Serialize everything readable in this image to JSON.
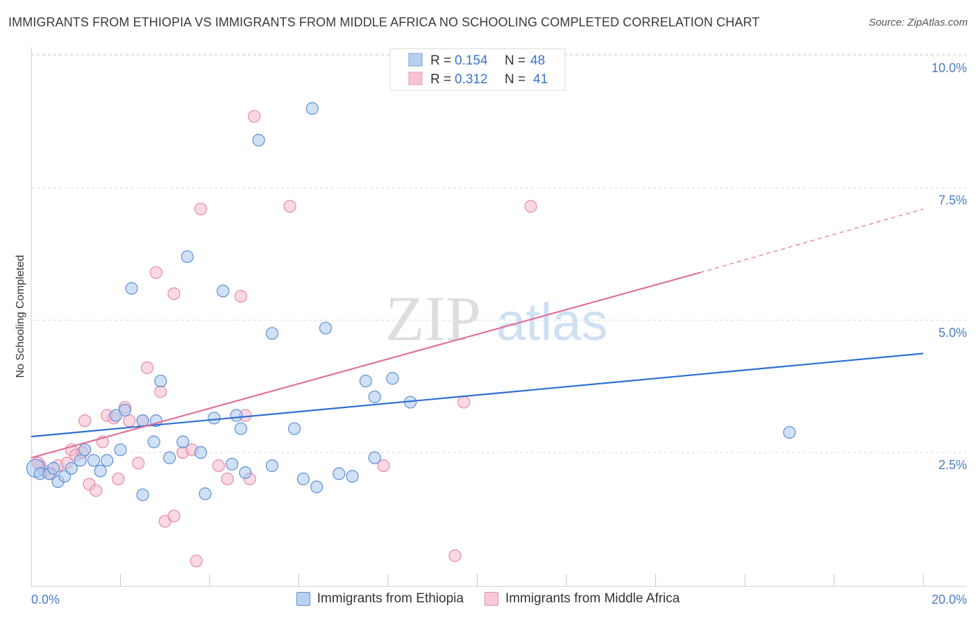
{
  "title": "IMMIGRANTS FROM ETHIOPIA VS IMMIGRANTS FROM MIDDLE AFRICA NO SCHOOLING COMPLETED CORRELATION CHART",
  "source": "Source: ZipAtlas.com",
  "watermark": {
    "zip": "ZIP",
    "atlas": "atlas"
  },
  "colors": {
    "blue_fill": "#a9c8ef",
    "blue_stroke": "#5b8fd6",
    "blue_line": "#2f6fd1",
    "pink_fill": "#f6b9cc",
    "pink_stroke": "#e48aa9",
    "pink_line": "#e0709a",
    "tick_text": "#4a7cc7",
    "grid": "#d9d9d9"
  },
  "legend": {
    "rows": [
      {
        "r_label": "R =",
        "r_value": "0.154",
        "n_label": "N =",
        "n_value": "48"
      },
      {
        "r_label": "R =",
        "r_value": "0.312",
        "n_label": "N =",
        "n_value": "41"
      }
    ]
  },
  "bottom_legend": {
    "series1": "Immigrants from Ethiopia",
    "series2": "Immigrants from Middle Africa"
  },
  "chart_data": {
    "type": "scatter",
    "title": "IMMIGRANTS FROM ETHIOPIA VS IMMIGRANTS FROM MIDDLE AFRICA NO SCHOOLING COMPLETED CORRELATION CHART",
    "xlabel": "",
    "ylabel": "No Schooling Completed",
    "xlim": [
      0,
      20
    ],
    "ylim": [
      0,
      10.5
    ],
    "x_tick_labels": [
      "0.0%",
      "20.0%"
    ],
    "y_ticks": [
      2.5,
      5.0,
      7.5,
      10.0
    ],
    "y_tick_labels": [
      "2.5%",
      "5.0%",
      "7.5%",
      "10.0%"
    ],
    "grid": true,
    "series": [
      {
        "name": "Immigrants from Ethiopia",
        "r": 0.154,
        "n": 48,
        "trend": {
          "x0": 0,
          "y0": 2.8,
          "x1": 20,
          "y1": 4.37
        },
        "points": [
          [
            0.1,
            2.2
          ],
          [
            0.2,
            2.1
          ],
          [
            0.4,
            2.1
          ],
          [
            0.5,
            2.2
          ],
          [
            0.6,
            1.95
          ],
          [
            0.75,
            2.05
          ],
          [
            0.9,
            2.2
          ],
          [
            1.1,
            2.35
          ],
          [
            1.2,
            2.55
          ],
          [
            1.4,
            2.35
          ],
          [
            1.55,
            2.15
          ],
          [
            1.7,
            2.35
          ],
          [
            1.9,
            3.2
          ],
          [
            2.0,
            2.55
          ],
          [
            2.1,
            3.3
          ],
          [
            2.25,
            5.6
          ],
          [
            2.5,
            3.1
          ],
          [
            2.5,
            1.7
          ],
          [
            2.75,
            2.7
          ],
          [
            2.8,
            3.1
          ],
          [
            2.9,
            3.85
          ],
          [
            3.1,
            2.4
          ],
          [
            3.4,
            2.7
          ],
          [
            3.5,
            6.2
          ],
          [
            3.8,
            2.5
          ],
          [
            3.9,
            1.72
          ],
          [
            4.1,
            3.15
          ],
          [
            4.3,
            5.55
          ],
          [
            4.5,
            2.28
          ],
          [
            4.6,
            3.2
          ],
          [
            4.7,
            2.95
          ],
          [
            4.8,
            2.12
          ],
          [
            5.1,
            8.4
          ],
          [
            5.4,
            4.75
          ],
          [
            5.4,
            2.25
          ],
          [
            5.9,
            2.95
          ],
          [
            6.1,
            2.0
          ],
          [
            6.3,
            9.0
          ],
          [
            6.4,
            1.85
          ],
          [
            6.6,
            4.85
          ],
          [
            6.9,
            2.1
          ],
          [
            7.2,
            2.05
          ],
          [
            7.5,
            3.85
          ],
          [
            7.7,
            2.4
          ],
          [
            7.7,
            3.55
          ],
          [
            8.1,
            3.9
          ],
          [
            8.5,
            3.45
          ],
          [
            17.0,
            2.88
          ]
        ]
      },
      {
        "name": "Immigrants from Middle Africa",
        "r": 0.312,
        "n": 41,
        "trend": {
          "x0": 0,
          "y0": 2.4,
          "x1": 15,
          "y1": 5.9,
          "dash_x1": 20,
          "dash_y1": 7.1
        },
        "points": [
          [
            0.2,
            2.25
          ],
          [
            0.3,
            2.15
          ],
          [
            0.45,
            2.1
          ],
          [
            0.6,
            2.25
          ],
          [
            0.8,
            2.3
          ],
          [
            0.9,
            2.55
          ],
          [
            1.0,
            2.45
          ],
          [
            1.15,
            2.5
          ],
          [
            1.2,
            3.1
          ],
          [
            1.3,
            1.9
          ],
          [
            1.45,
            1.78
          ],
          [
            1.6,
            2.7
          ],
          [
            1.7,
            3.2
          ],
          [
            1.85,
            3.15
          ],
          [
            1.95,
            2.0
          ],
          [
            2.1,
            3.35
          ],
          [
            2.2,
            3.1
          ],
          [
            2.4,
            2.3
          ],
          [
            2.5,
            3.1
          ],
          [
            2.6,
            4.1
          ],
          [
            2.8,
            5.9
          ],
          [
            2.9,
            3.65
          ],
          [
            3.0,
            1.2
          ],
          [
            3.2,
            5.5
          ],
          [
            3.2,
            1.3
          ],
          [
            3.4,
            2.5
          ],
          [
            3.6,
            2.55
          ],
          [
            3.7,
            0.45
          ],
          [
            3.8,
            7.1
          ],
          [
            4.2,
            2.25
          ],
          [
            4.4,
            2.0
          ],
          [
            4.7,
            5.45
          ],
          [
            4.8,
            3.2
          ],
          [
            4.9,
            2.0
          ],
          [
            5.0,
            8.85
          ],
          [
            5.8,
            7.15
          ],
          [
            7.9,
            2.25
          ],
          [
            9.5,
            0.55
          ],
          [
            9.7,
            3.45
          ],
          [
            11.2,
            7.15
          ],
          [
            0.15,
            2.3
          ]
        ]
      }
    ]
  }
}
